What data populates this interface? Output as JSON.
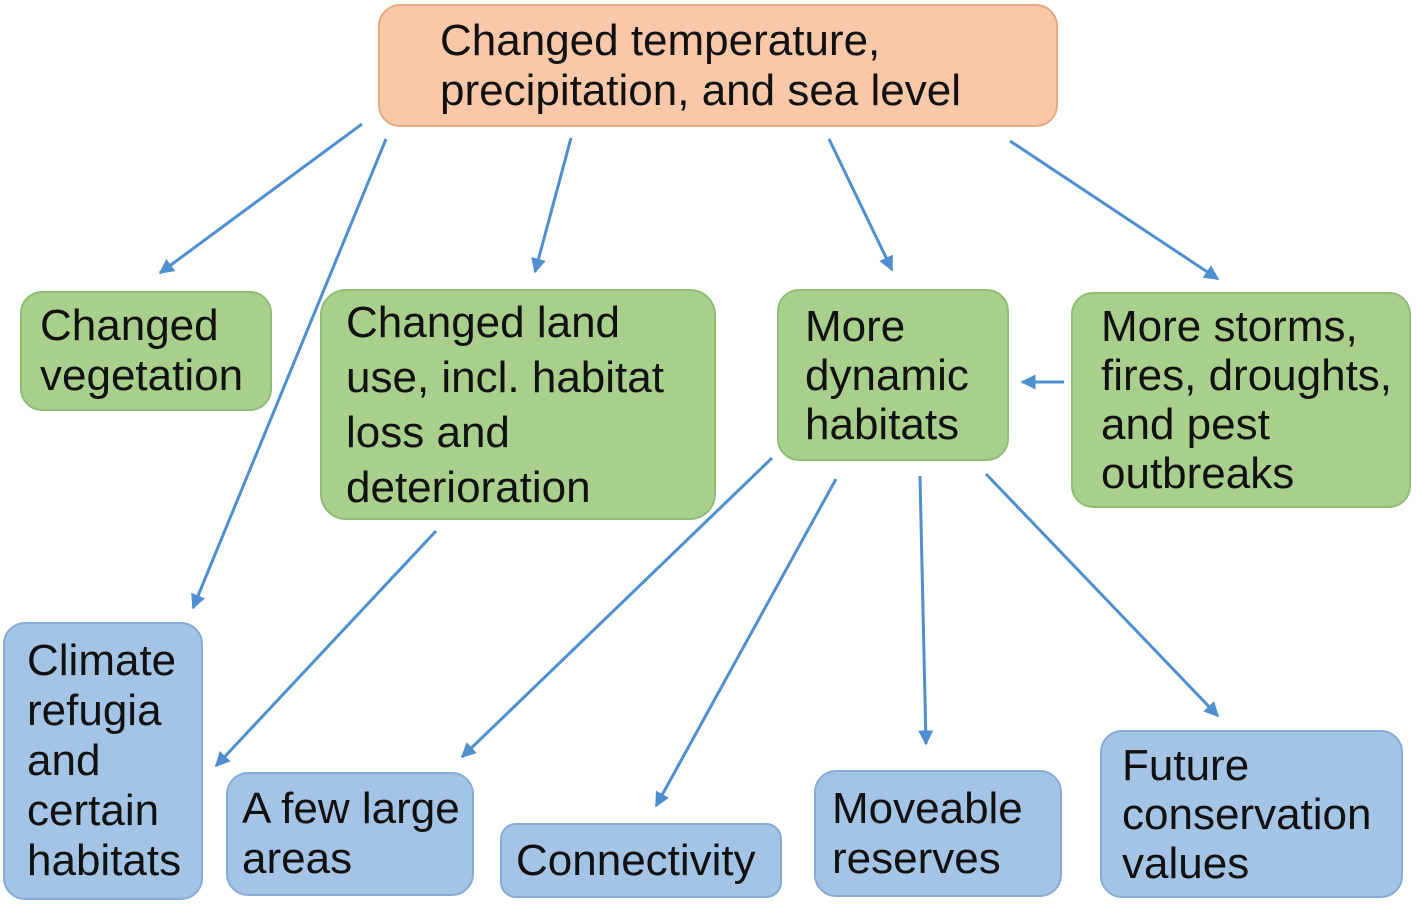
{
  "nodes": {
    "top": "Changed temperature,\nprecipitation, and sea level",
    "veg": "Changed\nvegetation",
    "land": "Changed land\nuse, incl. habitat\nloss and\ndeterioration",
    "dyn": "More\ndynamic\nhabitats",
    "storms": "More storms,\nfires, droughts,\nand pest\noutbreaks",
    "refugia": "Climate\nrefugia\nand\ncertain\nhabitats",
    "large": "A few large\nareas",
    "conn": "Connectivity",
    "move": "Moveable\nreserves",
    "future": "Future\nconservation\nvalues"
  },
  "colors": {
    "top_fill": "#f8c8a8",
    "effect_fill": "#a8d08c",
    "response_fill": "#a4c4e6",
    "arrow": "#4f8fcf"
  }
}
